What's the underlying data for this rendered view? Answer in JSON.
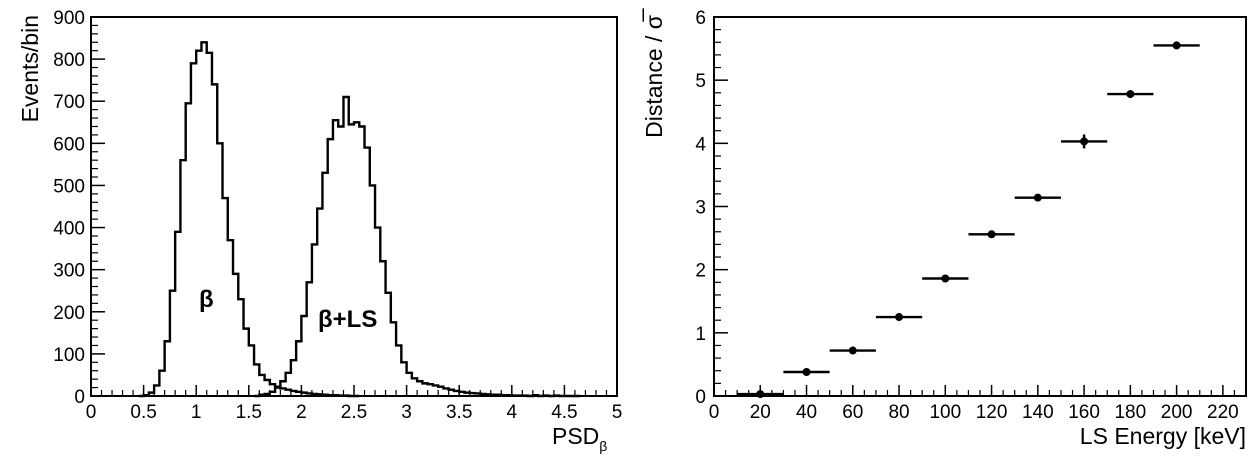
{
  "chart_data": [
    {
      "type": "histogram",
      "xlabel": "PSD",
      "xlabel_subscript": "β",
      "ylabel": "Events/bin",
      "xlim": [
        0,
        5
      ],
      "ylim": [
        0,
        900
      ],
      "x_ticks": [
        "0",
        "0.5",
        "1",
        "1.5",
        "2",
        "2.5",
        "3",
        "3.5",
        "4",
        "4.5",
        "5"
      ],
      "y_ticks": [
        "0",
        "100",
        "200",
        "300",
        "400",
        "500",
        "600",
        "700",
        "800",
        "900"
      ],
      "bin_width": 0.05,
      "grid": false,
      "legend": "none",
      "series": [
        {
          "label": "β",
          "bin_starts": [
            0.45,
            0.5,
            0.55,
            0.6,
            0.65,
            0.7,
            0.75,
            0.8,
            0.85,
            0.9,
            0.95,
            1.0,
            1.05,
            1.1,
            1.15,
            1.2,
            1.25,
            1.3,
            1.35,
            1.4,
            1.45,
            1.5,
            1.55,
            1.6,
            1.65,
            1.7,
            1.75,
            1.8,
            1.85,
            1.9,
            1.95,
            2.0,
            2.05,
            2.1,
            2.15,
            2.2,
            2.25,
            2.3,
            2.35,
            2.4,
            2.45,
            2.5
          ],
          "counts": [
            0,
            2,
            8,
            25,
            60,
            130,
            250,
            390,
            560,
            695,
            790,
            820,
            840,
            815,
            740,
            600,
            470,
            370,
            290,
            230,
            160,
            120,
            75,
            50,
            38,
            28,
            22,
            18,
            15,
            12,
            10,
            8,
            6,
            5,
            4,
            3,
            2,
            2,
            1,
            1,
            0,
            0
          ]
        },
        {
          "label": "β+LS",
          "bin_starts": [
            1.55,
            1.6,
            1.65,
            1.7,
            1.75,
            1.8,
            1.85,
            1.9,
            1.95,
            2.0,
            2.05,
            2.1,
            2.15,
            2.2,
            2.25,
            2.3,
            2.35,
            2.4,
            2.45,
            2.5,
            2.55,
            2.6,
            2.65,
            2.7,
            2.75,
            2.8,
            2.85,
            2.9,
            2.95,
            3.0,
            3.05,
            3.1,
            3.15,
            3.2,
            3.25,
            3.3,
            3.35,
            3.4,
            3.45,
            3.5,
            3.55,
            3.6,
            3.65,
            3.7,
            3.75,
            3.8,
            3.85,
            3.9,
            3.95,
            4.0,
            4.05,
            4.1,
            4.15,
            4.2,
            4.25,
            4.3,
            4.35,
            4.4,
            4.45,
            4.5,
            4.55,
            4.6
          ],
          "counts": [
            0,
            3,
            5,
            10,
            20,
            35,
            55,
            85,
            130,
            190,
            270,
            360,
            445,
            530,
            610,
            655,
            640,
            710,
            645,
            650,
            640,
            590,
            500,
            400,
            320,
            245,
            175,
            120,
            80,
            55,
            42,
            35,
            30,
            28,
            25,
            22,
            18,
            15,
            12,
            10,
            8,
            7,
            6,
            5,
            4,
            3,
            3,
            2,
            2,
            1,
            1,
            1,
            0,
            2,
            0,
            1,
            0,
            1,
            0,
            0,
            0,
            0
          ]
        }
      ],
      "annotations": [
        "β",
        "β+LS"
      ]
    },
    {
      "type": "scatter",
      "xlabel": "LS Energy [keV]",
      "ylabel": "Distance / σ̅",
      "xlim": [
        0,
        230
      ],
      "ylim": [
        0,
        6
      ],
      "x_ticks": [
        "0",
        "20",
        "40",
        "60",
        "80",
        "100",
        "120",
        "140",
        "160",
        "180",
        "200",
        "220"
      ],
      "y_ticks": [
        "0",
        "1",
        "2",
        "3",
        "4",
        "5",
        "6"
      ],
      "grid": false,
      "legend": "none",
      "points": {
        "x": [
          20,
          40,
          60,
          80,
          100,
          120,
          140,
          160,
          180,
          200
        ],
        "y": [
          0.03,
          0.38,
          0.72,
          1.25,
          1.86,
          2.56,
          3.14,
          4.03,
          4.78,
          5.55
        ],
        "xerr": [
          10,
          10,
          10,
          10,
          10,
          10,
          10,
          10,
          10,
          10
        ],
        "yerr": [
          0.02,
          0.02,
          0.03,
          0.03,
          0.03,
          0.05,
          0.05,
          0.11,
          0.06,
          0.06
        ]
      }
    }
  ]
}
